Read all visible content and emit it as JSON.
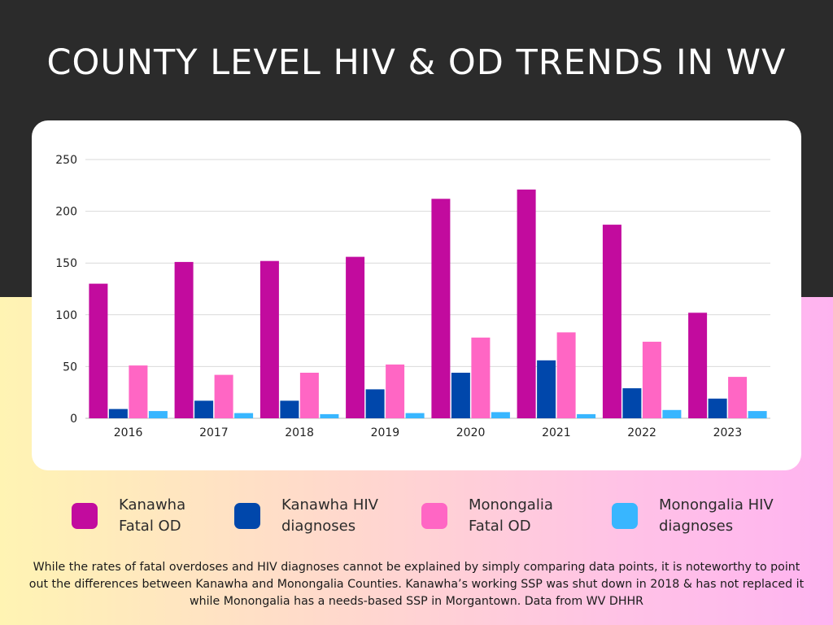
{
  "header": {
    "title": "COUNTY LEVEL HIV & OD TRENDS IN WV"
  },
  "chart_data": {
    "type": "bar",
    "categories": [
      "2016",
      "2017",
      "2018",
      "2019",
      "2020",
      "2021",
      "2022",
      "2023"
    ],
    "series": [
      {
        "name": "Kanawha Fatal OD",
        "color": "#c20b9e",
        "values": [
          130,
          151,
          152,
          156,
          212,
          221,
          187,
          102
        ]
      },
      {
        "name": "Kanawha HIV diagnoses",
        "color": "#0047ab",
        "values": [
          9,
          17,
          17,
          28,
          44,
          56,
          29,
          19
        ]
      },
      {
        "name": "Monongalia Fatal OD",
        "color": "#ff66c4",
        "values": [
          51,
          42,
          44,
          52,
          78,
          83,
          74,
          40
        ]
      },
      {
        "name": "Monongalia HIV diagnoses",
        "color": "#38b6ff",
        "values": [
          7,
          5,
          4,
          5,
          6,
          4,
          8,
          7
        ]
      }
    ],
    "yticks": [
      0,
      50,
      100,
      150,
      200,
      250
    ],
    "ylim": [
      0,
      250
    ],
    "grid": true,
    "legend_position": "bottom"
  },
  "legend": {
    "items": [
      {
        "line1": "Kanawha",
        "line2": "Fatal OD",
        "color": "#c20b9e"
      },
      {
        "line1": "Kanawha HIV",
        "line2": "diagnoses",
        "color": "#0047ab"
      },
      {
        "line1": "Monongalia",
        "line2": "Fatal OD",
        "color": "#ff66c4"
      },
      {
        "line1": "Monongalia HIV",
        "line2": "diagnoses",
        "color": "#38b6ff"
      }
    ]
  },
  "footer": {
    "note": "While the rates of fatal overdoses and HIV diagnoses cannot be explained by simply comparing data points, it is noteworthy to point out the differences between Kanawha and Monongalia Counties. Kanawha’s working SSP was shut down in 2018 & has not replaced it while Monongalia has a needs-based SSP in Morgantown. Data from WV DHHR"
  }
}
